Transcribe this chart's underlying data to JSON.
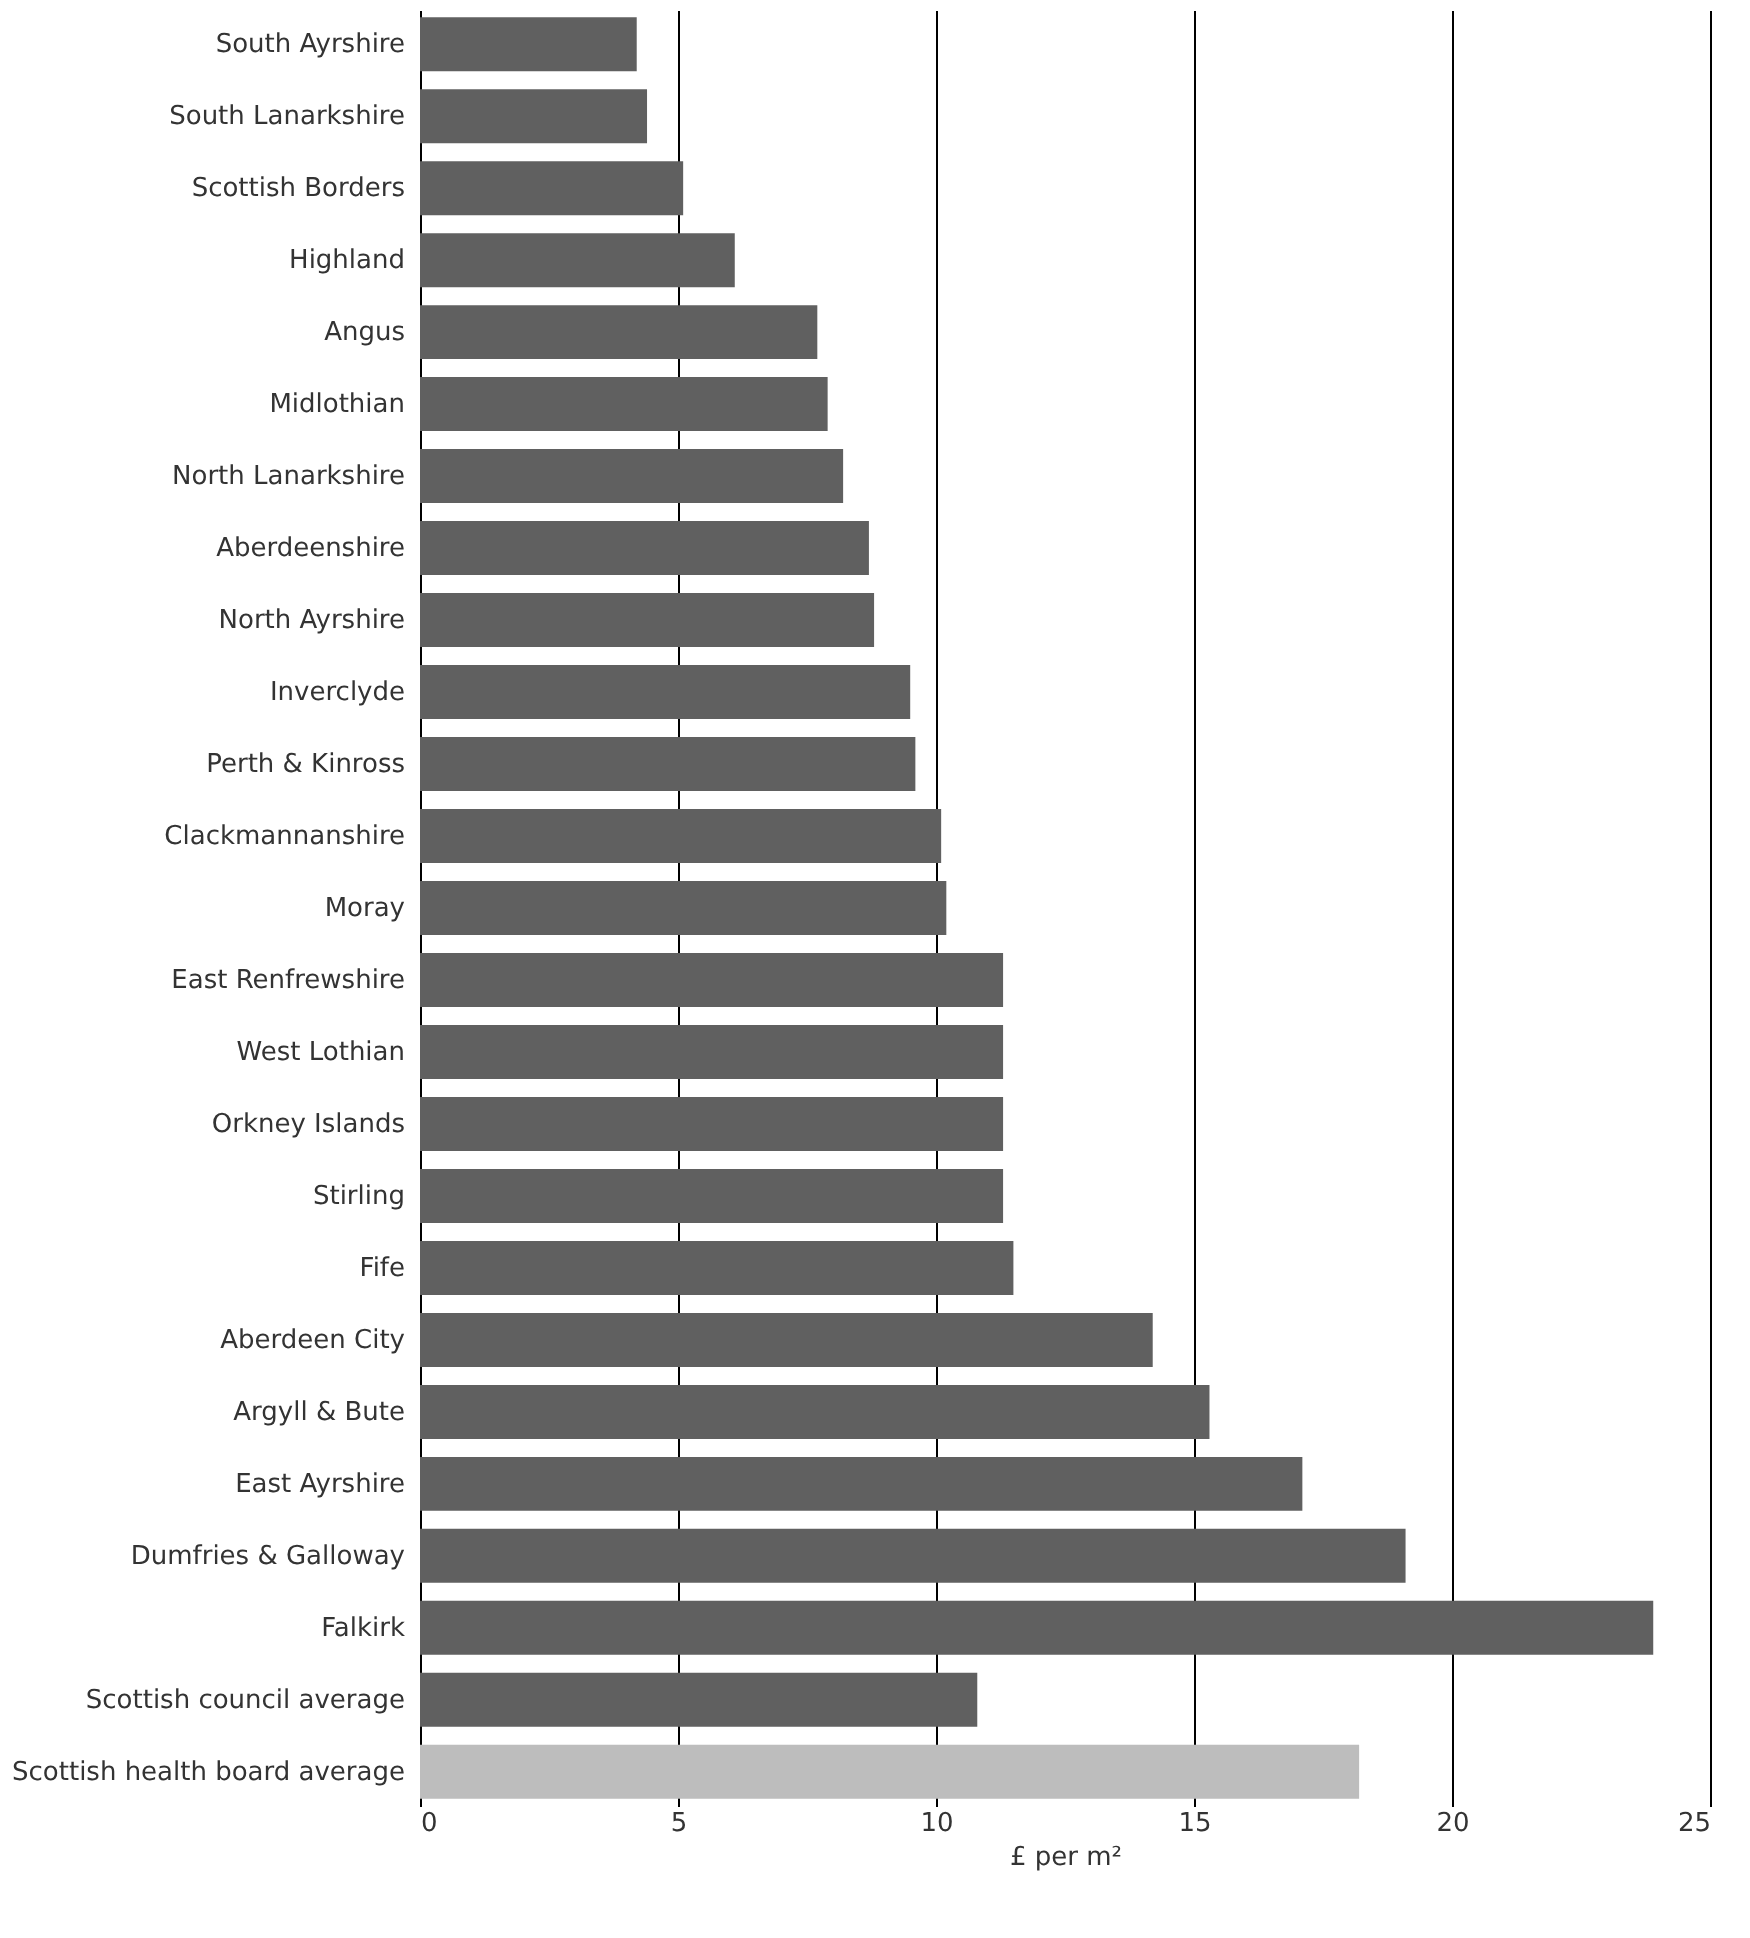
{
  "chart_data": {
    "type": "bar",
    "orientation": "horizontal",
    "categories": [
      "South Ayrshire",
      "South Lanarkshire",
      "Scottish Borders",
      "Highland",
      "Angus",
      "Midlothian",
      "North Lanarkshire",
      "Aberdeenshire",
      "North Ayrshire",
      "Inverclyde",
      "Perth & Kinross",
      "Clackmannanshire",
      "Moray",
      "East Renfrewshire",
      "West Lothian",
      "Orkney Islands",
      "Stirling",
      "Fife",
      "Aberdeen City",
      "Argyll & Bute",
      "East Ayrshire",
      "Dumfries & Galloway",
      "Falkirk",
      "Scottish council average",
      "Scottish health board average"
    ],
    "values": [
      4.2,
      4.4,
      5.1,
      6.1,
      7.7,
      7.9,
      8.2,
      8.7,
      8.8,
      9.5,
      9.6,
      10.1,
      10.2,
      11.3,
      11.3,
      11.3,
      11.3,
      11.5,
      14.2,
      15.3,
      17.1,
      19.1,
      23.9,
      10.8,
      18.2
    ],
    "colors": [
      "#606060",
      "#606060",
      "#606060",
      "#606060",
      "#606060",
      "#606060",
      "#606060",
      "#606060",
      "#606060",
      "#606060",
      "#606060",
      "#606060",
      "#606060",
      "#606060",
      "#606060",
      "#606060",
      "#606060",
      "#606060",
      "#606060",
      "#606060",
      "#606060",
      "#606060",
      "#606060",
      "#606060",
      "#bdbdbd"
    ],
    "xlabel": "£ per m²",
    "xlim": [
      0,
      25
    ],
    "xticks": [
      0,
      5,
      10,
      15,
      20,
      25
    ],
    "grid": "x"
  }
}
